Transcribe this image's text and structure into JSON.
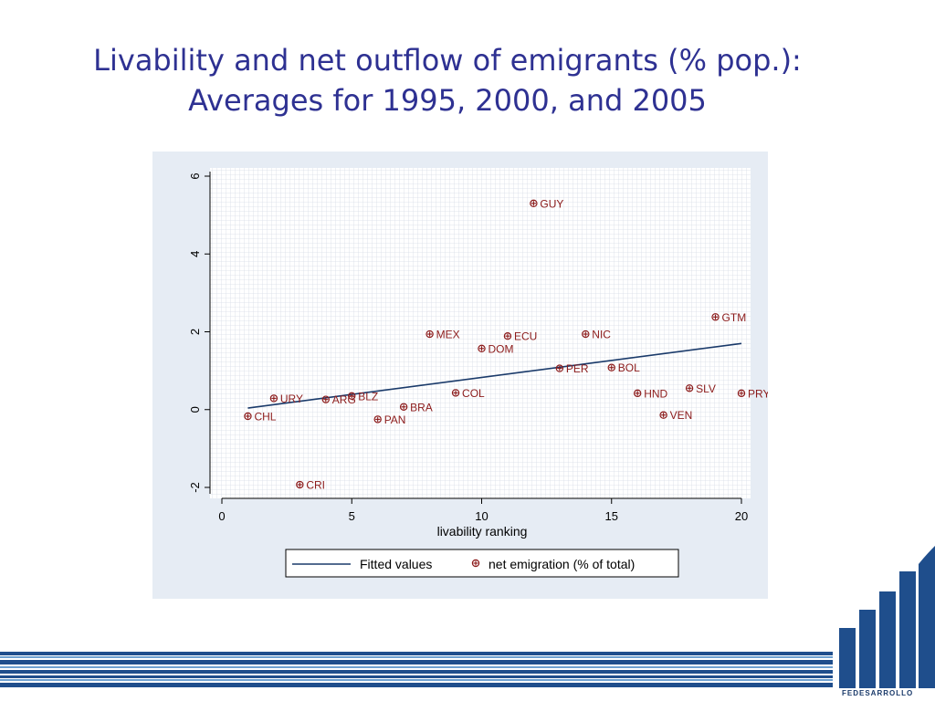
{
  "slide": {
    "title_line1": "Livability and net outflow of emigrants (% pop.):",
    "title_line2": "Averages for 1995, 2000, and 2005",
    "logo_text": "FEDESARROLLO",
    "title_color": "#2e3192",
    "brand_color": "#1f4e8c"
  },
  "chart_data": {
    "type": "scatter",
    "xlabel": "livability ranking",
    "ylabel": "",
    "xlim": [
      0,
      20
    ],
    "ylim": [
      -2,
      6
    ],
    "xticks": [
      0,
      5,
      10,
      15,
      20
    ],
    "yticks": [
      -2,
      0,
      2,
      4,
      6
    ],
    "grid": true,
    "legend_placement": "bottom",
    "series": [
      {
        "name": "net emigration (% of total)",
        "kind": "scatter",
        "color": "#8b1a1a",
        "points": [
          {
            "label": "CHL",
            "x": 1,
            "y": -0.17
          },
          {
            "label": "URY",
            "x": 2,
            "y": 0.29
          },
          {
            "label": "CRI",
            "x": 3,
            "y": -1.93
          },
          {
            "label": "ARG",
            "x": 4,
            "y": 0.26
          },
          {
            "label": "BLZ",
            "x": 5,
            "y": 0.35
          },
          {
            "label": "PAN",
            "x": 6,
            "y": -0.25
          },
          {
            "label": "BRA",
            "x": 7,
            "y": 0.07
          },
          {
            "label": "MEX",
            "x": 8,
            "y": 1.94
          },
          {
            "label": "COL",
            "x": 9,
            "y": 0.43
          },
          {
            "label": "DOM",
            "x": 10,
            "y": 1.57
          },
          {
            "label": "ECU",
            "x": 11,
            "y": 1.89
          },
          {
            "label": "GUY",
            "x": 12,
            "y": 5.3
          },
          {
            "label": "PER",
            "x": 13,
            "y": 1.06
          },
          {
            "label": "NIC",
            "x": 14,
            "y": 1.94
          },
          {
            "label": "BOL",
            "x": 15,
            "y": 1.08
          },
          {
            "label": "HND",
            "x": 16,
            "y": 0.42
          },
          {
            "label": "VEN",
            "x": 17,
            "y": -0.14
          },
          {
            "label": "SLV",
            "x": 18,
            "y": 0.55
          },
          {
            "label": "GTM",
            "x": 19,
            "y": 2.38
          },
          {
            "label": "PRY",
            "x": 20,
            "y": 0.42
          }
        ]
      },
      {
        "name": "Fitted values",
        "kind": "line",
        "color": "#1a3a6a",
        "x": [
          1,
          20
        ],
        "y": [
          0.04,
          1.7
        ]
      }
    ]
  }
}
